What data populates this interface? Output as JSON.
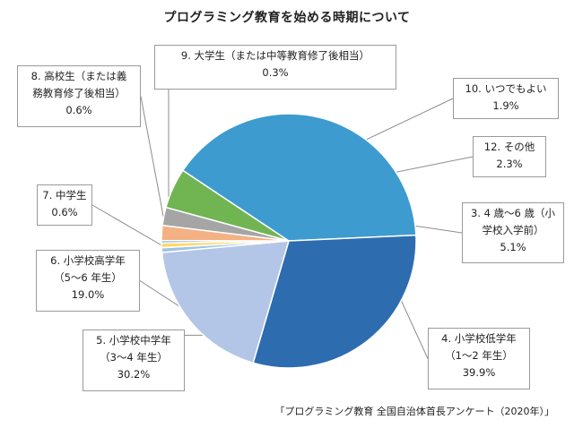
{
  "chart_data": {
    "type": "pie",
    "title": "プログラミング教育を始める時期について",
    "source": "「プログラミング教育 全国自治体首長アンケート（2020年）」",
    "slices": [
      {
        "key": "s12",
        "label": [
          "12. その他"
        ],
        "value": 2.3,
        "value_label": "2.3%",
        "color": "#a5a5a5"
      },
      {
        "key": "s3",
        "label": [
          "3. 4 歳～6 歳（小",
          "学校入学前）"
        ],
        "value": 5.1,
        "value_label": "5.1%",
        "color": "#70b551"
      },
      {
        "key": "s4",
        "label": [
          "4. 小学校低学年",
          "（1～2 年生）"
        ],
        "value": 39.9,
        "value_label": "39.9%",
        "color": "#3d9bcf"
      },
      {
        "key": "s5",
        "label": [
          "5. 小学校中学年",
          "（3～4 年生）"
        ],
        "value": 30.2,
        "value_label": "30.2%",
        "color": "#2e6cb0"
      },
      {
        "key": "s6",
        "label": [
          "6. 小学校高学年",
          "（5～6 年生）"
        ],
        "value": 19.0,
        "value_label": "19.0%",
        "color": "#b4c6e7"
      },
      {
        "key": "s7",
        "label": [
          "7. 中学生"
        ],
        "value": 0.6,
        "value_label": "0.6%",
        "color": "#9dc3e6"
      },
      {
        "key": "s8",
        "label": [
          "8. 高校生（または義",
          "務教育修了後相当）"
        ],
        "value": 0.6,
        "value_label": "0.6%",
        "color": "#ffd966"
      },
      {
        "key": "s9",
        "label": [
          "9. 大学生（または中等教育修了後相当）"
        ],
        "value": 0.3,
        "value_label": "0.3%",
        "color": "#5b9bd5"
      },
      {
        "key": "s10",
        "label": [
          "10. いつでもよい"
        ],
        "value": 1.9,
        "value_label": "1.9%",
        "color": "#f4b183"
      }
    ],
    "legend": "none (callout labels)"
  }
}
